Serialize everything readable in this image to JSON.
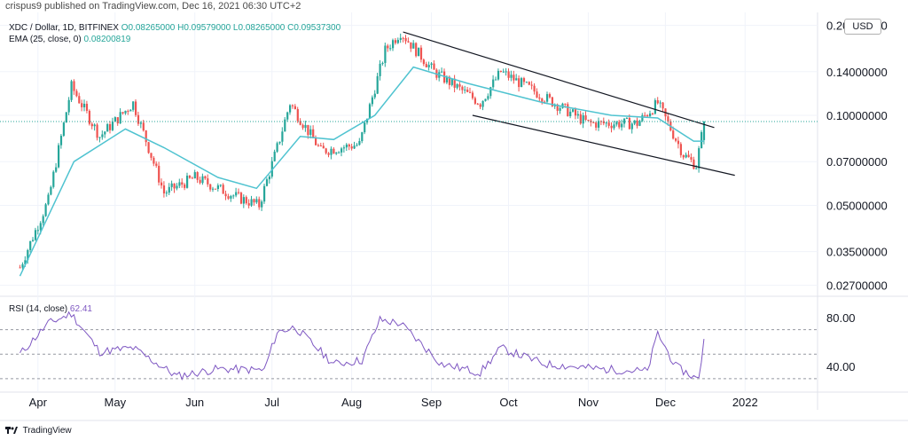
{
  "header": {
    "published": "crispus9 published on TradingView.com, Dec 16, 2021 06:30 UTC+2"
  },
  "legend": {
    "symbol": "XDC / Dollar, 1D, BITFINEX",
    "ohlc": "O0.08265000 H0.09579000 L0.08265000 C0.09537300",
    "ema_label": "EMA (25, close, 0)",
    "ema_value": "0.08200819"
  },
  "currency": "USD",
  "rsi": {
    "label": "RSI (14, close)",
    "value": "62.41"
  },
  "footer": {
    "brand": "TradingView"
  },
  "colors": {
    "up": "#26a69a",
    "down": "#ef5350",
    "ema": "#4fc3d0",
    "rsi": "#7e57c2",
    "grid": "#f0f3fa",
    "trend": "#131722"
  },
  "chart_data": [
    {
      "type": "candlestick",
      "title": "",
      "y_scale": "log",
      "y_ticks": [
        "0.20000000",
        "0.14000000",
        "0.10000000",
        "0.07000000",
        "0.05000000",
        "0.03500000",
        "0.02700000"
      ],
      "y_tick_values": [
        0.2,
        0.14,
        0.1,
        0.07,
        0.05,
        0.035,
        0.027
      ],
      "x_ticks": [
        "Apr",
        "May",
        "Jun",
        "Jul",
        "Aug",
        "Sep",
        "Oct",
        "Nov",
        "Dec",
        "2022"
      ],
      "last_price": 0.095373,
      "close_series": [
        {
          "date": "2021-03-25",
          "close": 0.031
        },
        {
          "date": "2021-04-05",
          "close": 0.052
        },
        {
          "date": "2021-04-14",
          "close": 0.125
        },
        {
          "date": "2021-04-25",
          "close": 0.085
        },
        {
          "date": "2021-05-08",
          "close": 0.11
        },
        {
          "date": "2021-05-20",
          "close": 0.055
        },
        {
          "date": "2021-06-01",
          "close": 0.062
        },
        {
          "date": "2021-06-18",
          "close": 0.053
        },
        {
          "date": "2021-06-26",
          "close": 0.05
        },
        {
          "date": "2021-07-03",
          "close": 0.078
        },
        {
          "date": "2021-07-08",
          "close": 0.11
        },
        {
          "date": "2021-07-20",
          "close": 0.076
        },
        {
          "date": "2021-08-04",
          "close": 0.08
        },
        {
          "date": "2021-08-14",
          "close": 0.165
        },
        {
          "date": "2021-08-20",
          "close": 0.19
        },
        {
          "date": "2021-09-02",
          "close": 0.14
        },
        {
          "date": "2021-09-20",
          "close": 0.11
        },
        {
          "date": "2021-09-28",
          "close": 0.14
        },
        {
          "date": "2021-10-15",
          "close": 0.115
        },
        {
          "date": "2021-11-01",
          "close": 0.094
        },
        {
          "date": "2021-11-20",
          "close": 0.094
        },
        {
          "date": "2021-11-28",
          "close": 0.11
        },
        {
          "date": "2021-12-08",
          "close": 0.074
        },
        {
          "date": "2021-12-13",
          "close": 0.068
        },
        {
          "date": "2021-12-16",
          "close": 0.095
        }
      ],
      "ema_series": [
        {
          "date": "2021-03-25",
          "value": 0.029
        },
        {
          "date": "2021-04-15",
          "value": 0.07
        },
        {
          "date": "2021-05-05",
          "value": 0.09
        },
        {
          "date": "2021-05-20",
          "value": 0.078
        },
        {
          "date": "2021-06-10",
          "value": 0.062
        },
        {
          "date": "2021-06-25",
          "value": 0.057
        },
        {
          "date": "2021-07-12",
          "value": 0.085
        },
        {
          "date": "2021-07-25",
          "value": 0.083
        },
        {
          "date": "2021-08-10",
          "value": 0.1
        },
        {
          "date": "2021-08-25",
          "value": 0.145
        },
        {
          "date": "2021-09-15",
          "value": 0.128
        },
        {
          "date": "2021-10-15",
          "value": 0.11
        },
        {
          "date": "2021-11-10",
          "value": 0.1
        },
        {
          "date": "2021-11-28",
          "value": 0.098
        },
        {
          "date": "2021-12-12",
          "value": 0.082
        },
        {
          "date": "2021-12-16",
          "value": 0.082
        }
      ],
      "trendlines": [
        {
          "from": {
            "date": "2021-08-21",
            "price": 0.19
          },
          "to": {
            "date": "2021-12-20",
            "price": 0.091
          }
        },
        {
          "from": {
            "date": "2021-09-17",
            "price": 0.1
          },
          "to": {
            "date": "2021-12-28",
            "price": 0.063
          }
        }
      ]
    },
    {
      "type": "line",
      "title": "",
      "y_ticks": [
        "80.00",
        "40.00"
      ],
      "y_tick_values": [
        80,
        40
      ],
      "bands": [
        70,
        50,
        30
      ],
      "series": [
        {
          "values": [
            {
              "date": "2021-03-25",
              "rsi": 50
            },
            {
              "date": "2021-04-05",
              "rsi": 75
            },
            {
              "date": "2021-04-14",
              "rsi": 83
            },
            {
              "date": "2021-04-25",
              "rsi": 52
            },
            {
              "date": "2021-05-08",
              "rsi": 55
            },
            {
              "date": "2021-05-25",
              "rsi": 32
            },
            {
              "date": "2021-06-10",
              "rsi": 38
            },
            {
              "date": "2021-06-28",
              "rsi": 37
            },
            {
              "date": "2021-07-03",
              "rsi": 68
            },
            {
              "date": "2021-07-10",
              "rsi": 72
            },
            {
              "date": "2021-07-25",
              "rsi": 42
            },
            {
              "date": "2021-08-05",
              "rsi": 45
            },
            {
              "date": "2021-08-12",
              "rsi": 78
            },
            {
              "date": "2021-08-20",
              "rsi": 75
            },
            {
              "date": "2021-09-05",
              "rsi": 42
            },
            {
              "date": "2021-09-20",
              "rsi": 35
            },
            {
              "date": "2021-09-28",
              "rsi": 55
            },
            {
              "date": "2021-10-15",
              "rsi": 42
            },
            {
              "date": "2021-11-05",
              "rsi": 38
            },
            {
              "date": "2021-11-24",
              "rsi": 36
            },
            {
              "date": "2021-11-28",
              "rsi": 67
            },
            {
              "date": "2021-12-05",
              "rsi": 40
            },
            {
              "date": "2021-12-14",
              "rsi": 29
            },
            {
              "date": "2021-12-16",
              "rsi": 62.41
            }
          ]
        }
      ]
    }
  ]
}
